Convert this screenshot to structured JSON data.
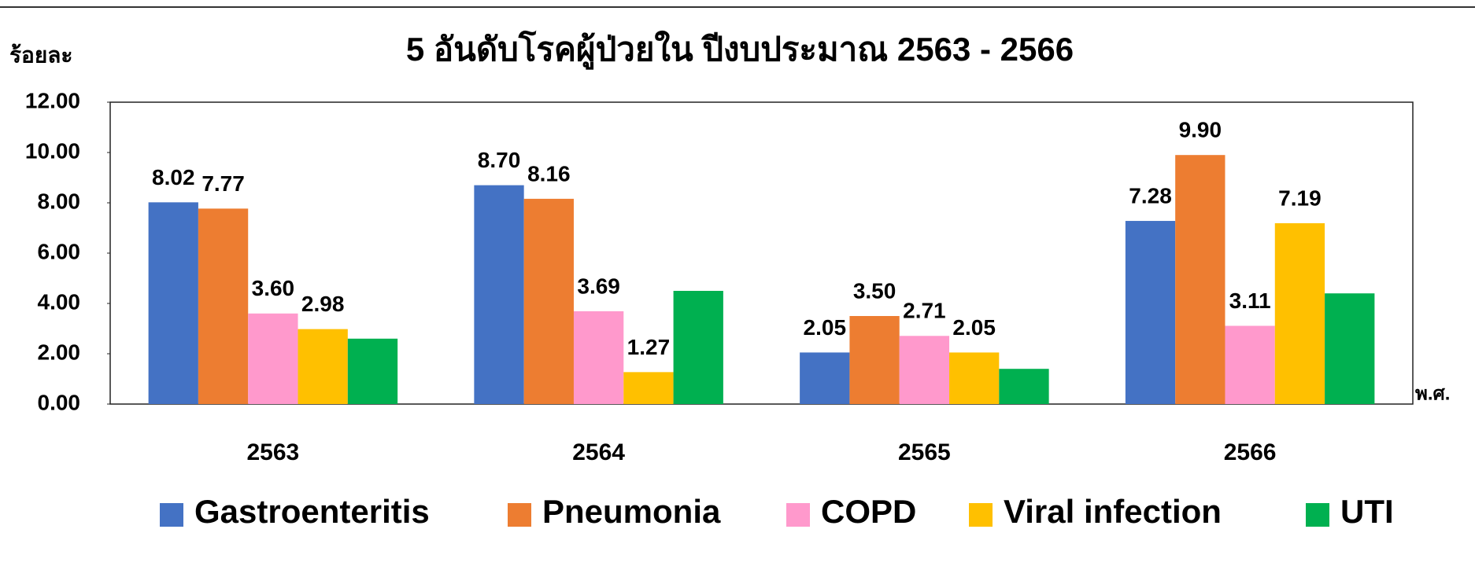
{
  "chart_data": {
    "type": "bar",
    "title": "5 อันดับโรคผู้ป่วยใน ปีงบประมาณ 2563 - 2566",
    "y_label": "ร้อยละ",
    "x_label": "พ.ศ.",
    "categories": [
      "2563",
      "2564",
      "2565",
      "2566"
    ],
    "series": [
      {
        "name": "Gastroenteritis",
        "color": "#4472c4",
        "values": [
          8.02,
          8.7,
          2.05,
          7.28
        ],
        "value_labels": [
          "8.02",
          "8.70",
          "2.05",
          "7.28"
        ]
      },
      {
        "name": "Pneumonia",
        "color": "#ed7d31",
        "values": [
          7.77,
          8.16,
          3.5,
          9.9
        ],
        "value_labels": [
          "7.77",
          "8.16",
          "3.50",
          "9.90"
        ]
      },
      {
        "name": "COPD",
        "color": "#ff99cc",
        "values": [
          3.6,
          3.69,
          2.71,
          3.11
        ],
        "value_labels": [
          "3.60",
          "3.69",
          "2.71",
          "3.11"
        ]
      },
      {
        "name": "Viral infection",
        "color": "#ffc000",
        "values": [
          2.98,
          1.27,
          2.05,
          7.19
        ],
        "value_labels": [
          "2.98",
          "1.27",
          "2.05",
          "7.19"
        ]
      },
      {
        "name": "UTI",
        "color": "#00b050",
        "values": [
          2.6,
          4.5,
          1.4,
          4.4
        ]
      }
    ],
    "ylim": [
      0,
      12
    ],
    "yticks": [
      {
        "value": 0,
        "label": "0.00"
      },
      {
        "value": 2,
        "label": "2.00"
      },
      {
        "value": 4,
        "label": "4.00"
      },
      {
        "value": 6,
        "label": "6.00"
      },
      {
        "value": 8,
        "label": "8.00"
      },
      {
        "value": 10,
        "label": "10.00"
      },
      {
        "value": 12,
        "label": "12.00"
      }
    ],
    "legend": "bottom"
  }
}
